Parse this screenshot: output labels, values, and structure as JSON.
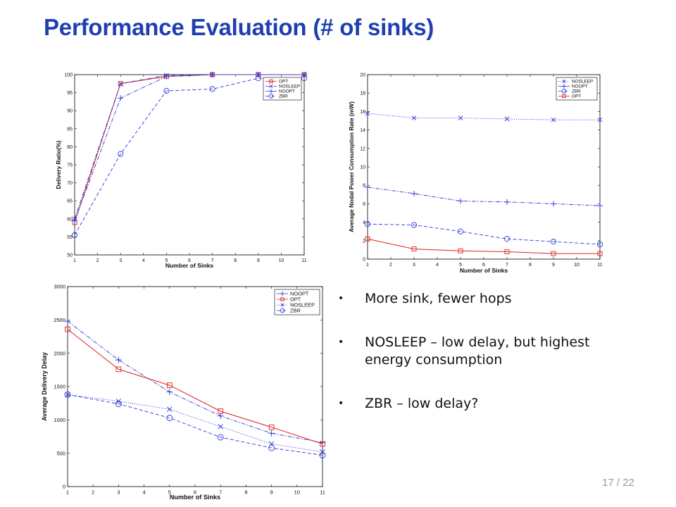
{
  "slide": {
    "title": "Performance Evaluation (# of sinks)",
    "bullets": [
      "More sink, fewer hops",
      "NOSLEEP – low delay, but highest energy consumption",
      "ZBR – low delay?"
    ],
    "page_number": "17",
    "page_total": "22",
    "page_separator": "/"
  },
  "colors": {
    "title": "#1f3fb0",
    "red_series": "#e02020",
    "blue_series": "#2a35d8"
  },
  "chart_data": [
    {
      "id": "delivery",
      "type": "line",
      "title": "",
      "xlabel": "Number of Sinks",
      "ylabel": "Delivery Ratio(%)",
      "xlim": [
        1,
        11
      ],
      "ylim": [
        50,
        100
      ],
      "xticks": [
        1,
        2,
        3,
        4,
        5,
        6,
        7,
        8,
        9,
        10,
        11
      ],
      "yticks": [
        50,
        55,
        60,
        65,
        70,
        75,
        80,
        85,
        90,
        95,
        100
      ],
      "grid": false,
      "legend_position": "top-right",
      "x": [
        1,
        3,
        5,
        7,
        9,
        11
      ],
      "series": [
        {
          "name": "OPT",
          "values": [
            59,
            97.5,
            99.5,
            100,
            100,
            100
          ],
          "color": "#e02020",
          "marker": "square",
          "dash": "solid"
        },
        {
          "name": "NOSLEEP",
          "values": [
            60,
            97.5,
            99.8,
            100,
            100,
            100
          ],
          "color": "#2a35d8",
          "marker": "x",
          "dash": "dashdot"
        },
        {
          "name": "NOOPT",
          "values": [
            59.5,
            93.5,
            99.5,
            100,
            100,
            100
          ],
          "color": "#2a35d8",
          "marker": "plus",
          "dash": "dashdot"
        },
        {
          "name": "ZBR",
          "values": [
            55.5,
            78,
            95.5,
            96,
            99,
            99
          ],
          "color": "#2a35d8",
          "marker": "circle",
          "dash": "dashed"
        }
      ]
    },
    {
      "id": "power",
      "type": "line",
      "title": "",
      "xlabel": "Number of Sinks",
      "ylabel": "Average Nodal Power Consumption Rate (mW)",
      "xlim": [
        1,
        11
      ],
      "ylim": [
        0,
        20
      ],
      "xticks": [
        1,
        2,
        3,
        4,
        5,
        6,
        7,
        8,
        9,
        10,
        11
      ],
      "yticks": [
        0,
        2,
        4,
        6,
        8,
        10,
        12,
        14,
        16,
        18,
        20
      ],
      "grid": false,
      "legend_position": "top-right",
      "x": [
        1,
        3,
        5,
        7,
        9,
        11
      ],
      "series": [
        {
          "name": "NOSLEEP",
          "values": [
            15.8,
            15.3,
            15.3,
            15.2,
            15.1,
            15.1
          ],
          "color": "#2a35d8",
          "marker": "x",
          "dash": "dotted"
        },
        {
          "name": "NOOPT",
          "values": [
            7.8,
            7.1,
            6.3,
            6.2,
            6.0,
            5.8
          ],
          "color": "#2a35d8",
          "marker": "plus",
          "dash": "dashdot"
        },
        {
          "name": "ZBR",
          "values": [
            3.8,
            3.7,
            3.0,
            2.2,
            1.9,
            1.6
          ],
          "color": "#2a35d8",
          "marker": "circle",
          "dash": "dashed"
        },
        {
          "name": "OPT",
          "values": [
            2.2,
            1.1,
            0.9,
            0.8,
            0.6,
            0.6
          ],
          "color": "#e02020",
          "marker": "square",
          "dash": "solid"
        }
      ]
    },
    {
      "id": "delay",
      "type": "line",
      "title": "",
      "xlabel": "Number of Sinks",
      "ylabel": "Average Delivery Delay",
      "xlim": [
        1,
        11
      ],
      "ylim": [
        0,
        3000
      ],
      "xticks": [
        1,
        2,
        3,
        4,
        5,
        6,
        7,
        8,
        9,
        10,
        11
      ],
      "yticks": [
        0,
        500,
        1000,
        1500,
        2000,
        2500,
        3000
      ],
      "grid": false,
      "legend_position": "top-right",
      "x": [
        1,
        3,
        5,
        7,
        9,
        11
      ],
      "series": [
        {
          "name": "NOOPT",
          "values": [
            2480,
            1900,
            1420,
            1060,
            800,
            660
          ],
          "color": "#2a35d8",
          "marker": "plus",
          "dash": "dashdot"
        },
        {
          "name": "OPT",
          "values": [
            2360,
            1760,
            1520,
            1130,
            890,
            640
          ],
          "color": "#e02020",
          "marker": "square",
          "dash": "solid"
        },
        {
          "name": "NOSLEEP",
          "values": [
            1380,
            1280,
            1160,
            900,
            640,
            520
          ],
          "color": "#2a35d8",
          "marker": "x",
          "dash": "dotted"
        },
        {
          "name": "ZBR",
          "values": [
            1380,
            1240,
            1030,
            740,
            580,
            470
          ],
          "color": "#2a35d8",
          "marker": "circle",
          "dash": "dashed"
        }
      ]
    }
  ]
}
